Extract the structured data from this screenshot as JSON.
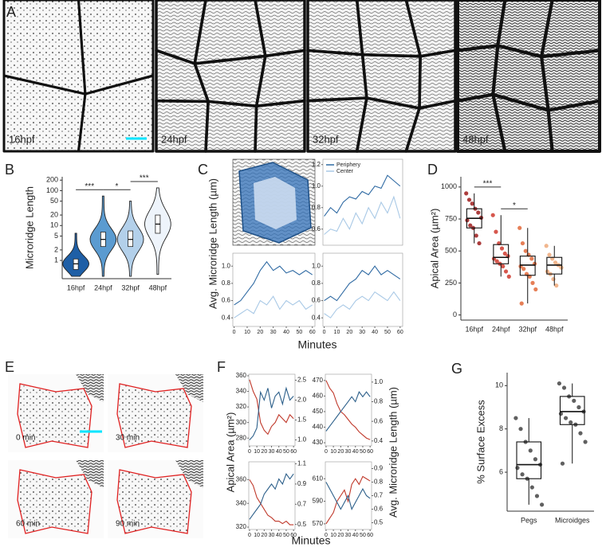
{
  "figure": {
    "panel_labels": [
      "A",
      "B",
      "C",
      "D",
      "E",
      "F",
      "G"
    ]
  },
  "panel_a": {
    "image_labels": [
      "16hpf",
      "24hpf",
      "32hpf",
      "48hpf"
    ]
  },
  "panel_e": {
    "image_labels": [
      "0 min",
      "30 min",
      "60 min",
      "90 min"
    ]
  },
  "chart_data": [
    {
      "type": "violin",
      "y_label": "Microridge Length",
      "log_y": true,
      "ylim": [
        0.3,
        250
      ],
      "yticks": [
        1,
        2,
        5,
        10,
        20,
        50,
        100,
        200
      ],
      "categories": [
        "16hpf",
        "24hpf",
        "32hpf",
        "48hpf"
      ],
      "colors": [
        "#1f5fa6",
        "#5b9bd0",
        "#b3d0ea",
        "#eef4fb"
      ],
      "min": [
        0.35,
        0.35,
        0.35,
        0.4
      ],
      "q1": [
        0.55,
        2.5,
        2.5,
        6
      ],
      "median": [
        0.8,
        4,
        4,
        11
      ],
      "q3": [
        1.1,
        6.5,
        7,
        20
      ],
      "max": [
        6,
        70,
        50,
        120
      ],
      "annotations": [
        {
          "text": "***",
          "between": [
            "16hpf",
            "24hpf"
          ]
        },
        {
          "text": "*",
          "between": [
            "24hpf",
            "32hpf"
          ]
        },
        {
          "text": "***",
          "between": [
            "32hpf",
            "48hpf"
          ]
        }
      ]
    },
    {
      "type": "line",
      "y_label": "Avg. Microridge Length (µm)",
      "x_label": "Minutes",
      "legend": "upper-left",
      "xlim": [
        -1,
        62
      ],
      "xticks": [
        0,
        10,
        20,
        30,
        40,
        50,
        60
      ],
      "x": [
        0,
        5,
        10,
        15,
        20,
        25,
        30,
        35,
        40,
        45,
        50,
        55,
        60
      ],
      "panels": [
        {
          "ylim": [
            0.45,
            1.25
          ],
          "yticks": [
            0.6,
            0.8,
            {
              "value": 1,
              "label": "1.0"
            },
            1.2
          ],
          "series": [
            {
              "name": "Periphery",
              "color": "#2f6aa3",
              "values": [
                0.72,
                0.8,
                0.75,
                0.85,
                0.9,
                0.88,
                0.95,
                0.92,
                1.0,
                0.98,
                1.1,
                1.05,
                1.0
              ]
            },
            {
              "name": "Center",
              "color": "#a9c9e6",
              "values": [
                0.55,
                0.6,
                0.58,
                0.7,
                0.6,
                0.75,
                0.65,
                0.8,
                0.7,
                0.85,
                0.75,
                0.9,
                0.7
              ]
            }
          ]
        },
        {
          "ylim": [
            0.3,
            1.15
          ],
          "yticks": [
            0.4,
            0.6,
            0.8,
            {
              "value": 1,
              "label": "1.0"
            }
          ],
          "series": [
            {
              "name": "Periphery",
              "color": "#2f6aa3",
              "values": [
                0.55,
                0.6,
                0.7,
                0.8,
                0.95,
                1.05,
                0.95,
                1.0,
                0.92,
                0.95,
                0.9,
                0.95,
                0.9
              ]
            },
            {
              "name": "Center",
              "color": "#a9c9e6",
              "values": [
                0.4,
                0.45,
                0.5,
                0.45,
                0.6,
                0.55,
                0.65,
                0.5,
                0.6,
                0.55,
                0.6,
                0.5,
                0.55
              ]
            }
          ]
        },
        {
          "ylim": [
            0.3,
            1.15
          ],
          "yticks": [
            0.4,
            0.6,
            0.8,
            {
              "value": 1,
              "label": "1.0"
            }
          ],
          "series": [
            {
              "name": "Periphery",
              "color": "#2f6aa3",
              "values": [
                0.6,
                0.65,
                0.6,
                0.7,
                0.8,
                0.85,
                0.95,
                0.9,
                1.0,
                0.9,
                0.95,
                0.9,
                0.85
              ]
            },
            {
              "name": "Center",
              "color": "#a9c9e6",
              "values": [
                0.45,
                0.4,
                0.5,
                0.55,
                0.5,
                0.6,
                0.65,
                0.6,
                0.7,
                0.65,
                0.6,
                0.7,
                0.6
              ]
            }
          ]
        }
      ]
    },
    {
      "type": "box",
      "y_label": "Apical Area (µm²)",
      "ylim": [
        -40,
        1080
      ],
      "yticks": [
        0,
        250,
        500,
        750,
        1000
      ],
      "categories": [
        "16hpf",
        "24hpf",
        "32hpf",
        "48hpf"
      ],
      "colors": [
        "#9e1b1b",
        "#cf3a2e",
        "#e2683a",
        "#eea97a"
      ],
      "min": [
        560,
        300,
        90,
        230
      ],
      "q1": [
        680,
        400,
        310,
        320
      ],
      "median": [
        755,
        450,
        390,
        390
      ],
      "q3": [
        830,
        550,
        460,
        450
      ],
      "max": [
        950,
        780,
        680,
        540
      ],
      "points": [
        [
          950,
          900,
          870,
          830,
          800,
          760,
          740,
          700,
          680,
          620,
          560
        ],
        [
          780,
          650,
          560,
          520,
          480,
          460,
          440,
          420,
          400,
          380,
          340,
          300
        ],
        [
          680,
          560,
          500,
          470,
          440,
          400,
          380,
          360,
          320,
          300,
          250,
          200,
          90
        ],
        [
          540,
          470,
          440,
          410,
          390,
          370,
          340,
          320,
          280,
          230
        ]
      ],
      "annotations": [
        {
          "text": "***",
          "between": [
            "16hpf",
            "24hpf"
          ]
        },
        {
          "text": "*",
          "between": [
            "24hpf",
            "32hpf"
          ]
        }
      ]
    },
    {
      "type": "line",
      "y_label": "Apical Area (µm²)",
      "y2_label": "Avg. Microridge Length (µm)",
      "x_label": "Minutes",
      "xlim": [
        -1,
        62
      ],
      "xticks": [
        0,
        10,
        20,
        30,
        40,
        50,
        60
      ],
      "x": [
        0,
        5,
        10,
        15,
        20,
        25,
        30,
        35,
        40,
        45,
        50,
        55,
        60
      ],
      "panels": [
        {
          "ylim": [
            270,
            362
          ],
          "yticks": [
            280,
            300,
            320,
            340,
            360
          ],
          "y2lim": [
            0.85,
            2.65
          ],
          "y2ticks": [
            {
              "value": 1,
              "label": "1.0"
            },
            1.5,
            {
              "value": 2,
              "label": "2.0"
            },
            2.5
          ],
          "series": [
            {
              "color": "#c0392b",
              "values": [
                355,
                340,
                330,
                300,
                290,
                285,
                295,
                300,
                310,
                305,
                300,
                310,
                305
              ]
            },
            {
              "color": "#2c5f8a",
              "axis": "y2",
              "values": [
                1.0,
                1.1,
                1.3,
                2.2,
                2.0,
                2.3,
                1.8,
                2.1,
                2.2,
                1.9,
                2.3,
                2.0,
                2.1
              ]
            }
          ]
        },
        {
          "ylim": [
            428,
            474
          ],
          "yticks": [
            430,
            440,
            450,
            460,
            470
          ],
          "y2lim": [
            0.35,
            1.08
          ],
          "y2ticks": [
            0.4,
            0.6,
            0.8,
            {
              "value": 1,
              "label": "1.0"
            }
          ],
          "series": [
            {
              "color": "#c0392b",
              "values": [
                470,
                465,
                462,
                455,
                450,
                448,
                445,
                442,
                440,
                437,
                435,
                433,
                432
              ]
            },
            {
              "color": "#2c5f8a",
              "axis": "y2",
              "values": [
                0.5,
                0.55,
                0.6,
                0.65,
                0.7,
                0.75,
                0.8,
                0.85,
                0.8,
                0.9,
                0.85,
                0.9,
                0.85
              ]
            }
          ]
        },
        {
          "ylim": [
            318,
            375
          ],
          "yticks": [
            320,
            340,
            360
          ],
          "y2lim": [
            0.45,
            1.12
          ],
          "y2ticks": [
            0.5,
            0.7,
            0.9,
            1.1
          ],
          "series": [
            {
              "color": "#c0392b",
              "values": [
                360,
                355,
                345,
                340,
                335,
                330,
                328,
                325,
                325,
                323,
                325,
                322,
                322
              ]
            },
            {
              "color": "#2c5f8a",
              "axis": "y2",
              "values": [
                0.55,
                0.6,
                0.65,
                0.7,
                0.8,
                0.85,
                0.9,
                0.85,
                0.95,
                0.9,
                1.0,
                0.95,
                1.0
              ]
            }
          ]
        },
        {
          "ylim": [
            565,
            625
          ],
          "yticks": [
            570,
            590,
            610
          ],
          "y2lim": [
            0.45,
            0.95
          ],
          "y2ticks": [
            0.5,
            0.6,
            0.7,
            0.8,
            0.9
          ],
          "series": [
            {
              "color": "#c0392b",
              "values": [
                570,
                575,
                580,
                590,
                595,
                600,
                590,
                605,
                610,
                605,
                612,
                610,
                608
              ]
            },
            {
              "color": "#2c5f8a",
              "axis": "y2",
              "values": [
                0.8,
                0.75,
                0.7,
                0.65,
                0.6,
                0.65,
                0.7,
                0.6,
                0.65,
                0.7,
                0.75,
                0.7,
                0.68
              ]
            }
          ]
        }
      ]
    },
    {
      "type": "box",
      "y_label": "% Surface Excess",
      "ylim": [
        4.2,
        10.6
      ],
      "yticks": [
        6,
        8,
        10
      ],
      "categories": [
        "Pegs",
        "Microidges"
      ],
      "colors": [
        "#444444",
        "#444444"
      ],
      "min": [
        4.5,
        6.4
      ],
      "q1": [
        5.7,
        8.2
      ],
      "median": [
        6.35,
        8.8
      ],
      "q3": [
        7.4,
        9.5
      ],
      "max": [
        8.5,
        10.1
      ],
      "points": [
        [
          8.5,
          8.0,
          7.4,
          7.0,
          6.6,
          6.35,
          6.2,
          5.9,
          5.7,
          5.3,
          4.9,
          4.5
        ],
        [
          10.1,
          9.9,
          9.5,
          9.3,
          9.0,
          8.8,
          8.7,
          8.5,
          8.3,
          8.2,
          7.8,
          7.4,
          6.4
        ]
      ]
    }
  ]
}
